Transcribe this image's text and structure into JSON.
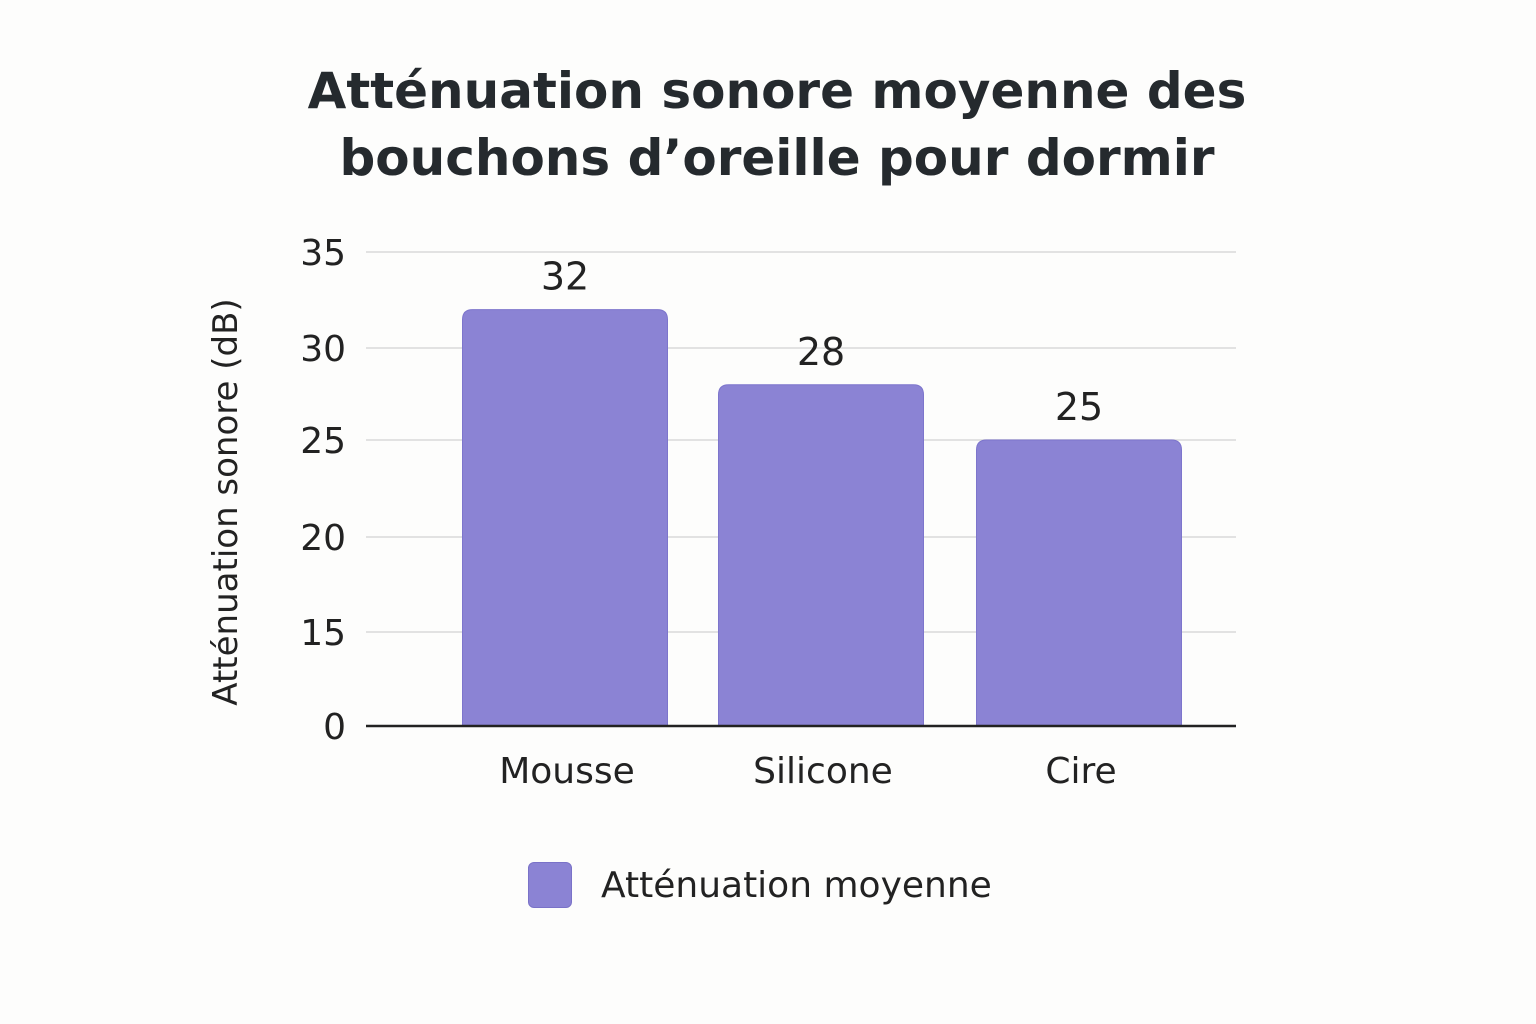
{
  "chart_data": {
    "type": "bar",
    "title": "Atténuation sonore moyenne des bouchons d’oreille pour dormir",
    "title_lines": [
      "Atténuation sonore moyenne des",
      "bouchons d’oreille pour dormir"
    ],
    "xlabel": "",
    "ylabel": "Atténuation sonore (dB)",
    "categories": [
      "Mousse",
      "Silicone",
      "Cire"
    ],
    "series": [
      {
        "name": "Atténuation moyenne",
        "values": [
          32,
          28,
          25
        ],
        "color": "#8b83d4"
      }
    ],
    "y_ticks": [
      0,
      15,
      20,
      25,
      30,
      35
    ],
    "ylim": [
      0,
      35
    ],
    "grid": true,
    "legend_position": "bottom"
  }
}
